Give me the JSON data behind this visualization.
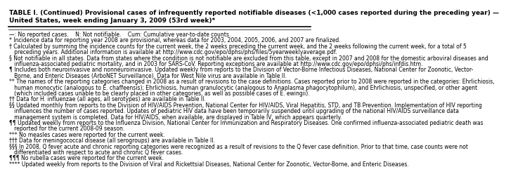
{
  "title_line1": "TABLE I. (Continued) Provisional cases of infrequently reported notifiable diseases (<1,000 cases reported during the preceding year) —",
  "title_line2": "United States, week ending January 3, 2009 (53rd week)*",
  "footnotes": [
    "—: No reported cases.    N: Not notifiable.    Cum: Cumulative year-to-date counts.",
    "* Incidence data for reporting year 2008 are provisional, whereas data for 2003, 2004, 2005, 2006, and 2007 are finalized.",
    "† Calculated by summing the incidence counts for the current week, the 2 weeks preceding the current week, and the 2 weeks following the current week, for a total of 5",
    "   preceding years. Additional information is available at http://www.cdc.gov/epo/dphsi/phs/files/5yearweeklyaverage.pdf.",
    "§ Not notifiable in all states. Data from states where the condition is not notifiable are excluded from this table, except in 2007 and 2008 for the domestic arboviral diseases and",
    "   influenza-associated pediatric mortality, and in 2003 for SARS-CoV. Reporting exceptions are available at http://www.cdc.gov/epo/dphsi/phs/infdis.htm.",
    "¶ Includes both neuroinvasive and nonneuroinvasive. Updated weekly from reports to the Division of Vector-Borne Infectious Diseases, National Center for Zoonotic, Vector-",
    "   Borne, and Enteric Diseases (ArboNET Surveillance). Data for West Nile virus are available in Table II.",
    "** The names of the reporting categories changed in 2008 as a result of revisions to the case definitions. Cases reported prior to 2008 were reported in the categories: Ehrlichiosis,",
    "   human monocytic (analogous to E. chaffeensis); Ehrlichiosis, human granulocytic (analogous to Anaplasma phagocytophilum), and Ehrlichiosis, unspecified, or other agent",
    "   (which included cases unable to be clearly placed in other categories, as well as possible cases of E. ewingii).",
    "†† Data for H. influenzae (all ages, all serotypes) are available in Table II.",
    "§§ Updated monthly from reports to the Division of HIV/AIDS Prevention, National Center for HIV/AIDS, Viral Hepatitis, STD, and TB Prevention. Implementation of HIV reporting",
    "   influences the number of cases reported. Updates of pediatric HIV data have been temporarily suspended until upgrading of the national HIV/AIDS surveillance data",
    "   management system is completed. Data for HIV/AIDS, when available, are displayed in Table IV, which appears quarterly.",
    "¶¶ Updated weekly from reports to the Influenza Division, National Center for Immunization and Respiratory Diseases. One confirmed influenza-associated pediatric death was",
    "   reported for the current 2008-09 season.",
    "*** No measles cases were reported for the current week.",
    "††† Data for meningococcal disease (all serogroups) are available in Table II.",
    "§§§ In 2008, Q fever acute and chronic reporting categories were recognized as a result of revisions to the Q fever case definition. Prior to that time, case counts were not",
    "   differentiated with respect to acute and chronic Q fever cases.",
    "¶¶¶ No rubella cases were reported for the current week.",
    "**** Updated weekly from reports to the Division of Viral and Rickettsial Diseases, National Center for Zoonotic, Vector-Borne, and Enteric Diseases."
  ],
  "bg_color": "#ffffff",
  "text_color": "#000000",
  "title_fontsize": 6.5,
  "footnote_fontsize": 5.5,
  "line_color": "#000000"
}
